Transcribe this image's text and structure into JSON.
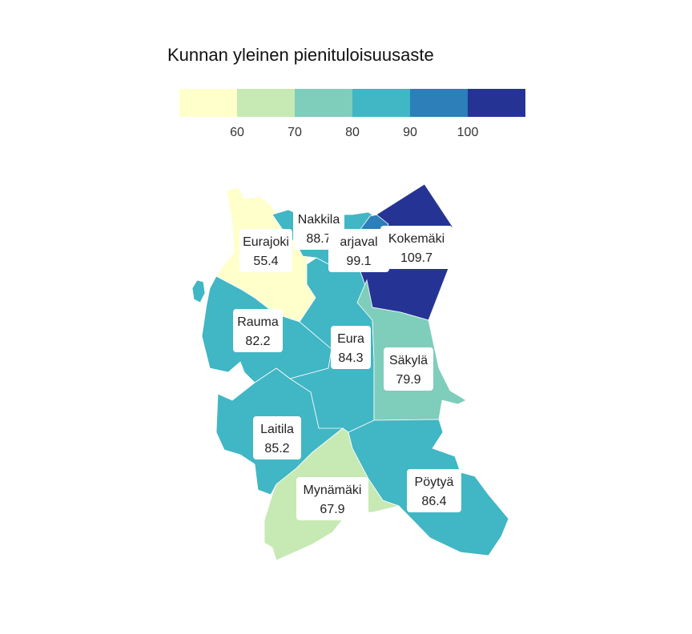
{
  "title": "Kunnan yleinen pienituloisuusaste",
  "legend": {
    "colors": [
      "#ffffcc",
      "#c7e9b4",
      "#7fcdbb",
      "#41b6c4",
      "#2c7fb8",
      "#253494"
    ],
    "ticks": [
      "60",
      "70",
      "80",
      "90",
      "100"
    ]
  },
  "chart_data": {
    "type": "choropleth",
    "title": "Kunnan yleinen pienituloisuusaste",
    "bins": [
      60,
      70,
      80,
      90,
      100
    ],
    "regions": [
      {
        "name": "Eurajoki",
        "value": "55.4",
        "fill": "#ffffcc"
      },
      {
        "name": "Nakkila",
        "value": "88.7",
        "fill": "#41b6c4"
      },
      {
        "name": "Harjavalta",
        "label": "arjaval",
        "value": "99.1",
        "fill": "#2c7fb8"
      },
      {
        "name": "Kokemäki",
        "value": "109.7",
        "fill": "#253494"
      },
      {
        "name": "Rauma",
        "value": "82.2",
        "fill": "#41b6c4"
      },
      {
        "name": "Eura",
        "value": "84.3",
        "fill": "#41b6c4"
      },
      {
        "name": "Säkylä",
        "value": "79.9",
        "fill": "#7fcdbb"
      },
      {
        "name": "Laitila",
        "value": "85.2",
        "fill": "#41b6c4"
      },
      {
        "name": "Mynämäki",
        "value": "67.9",
        "fill": "#c7e9b4"
      },
      {
        "name": "Pöytyä",
        "value": "86.4",
        "fill": "#41b6c4"
      }
    ]
  }
}
